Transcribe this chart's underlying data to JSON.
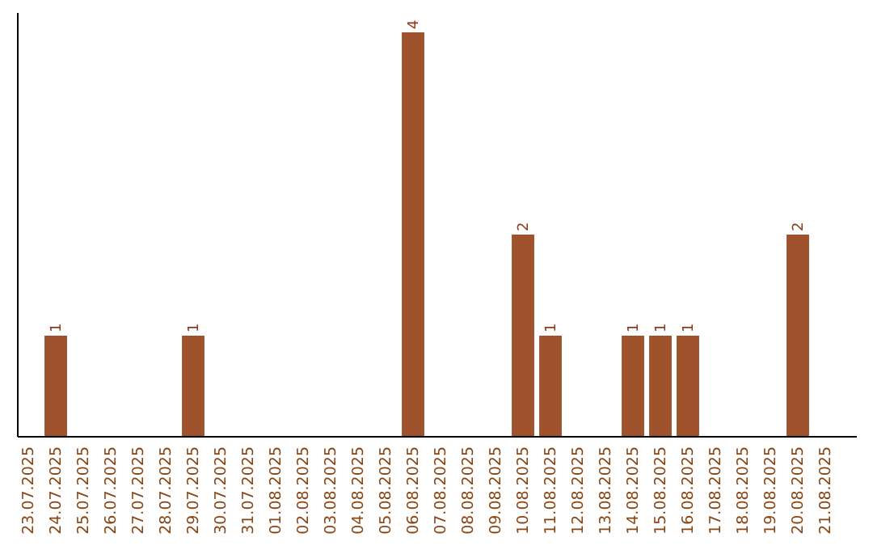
{
  "chart_data": {
    "type": "bar",
    "categories": [
      "23.07.2025",
      "24.07.2025",
      "25.07.2025",
      "26.07.2025",
      "27.07.2025",
      "28.07.2025",
      "29.07.2025",
      "30.07.2025",
      "31.07.2025",
      "01.08.2025",
      "02.08.2025",
      "03.08.2025",
      "04.08.2025",
      "05.08.2025",
      "06.08.2025",
      "07.08.2025",
      "08.08.2025",
      "09.08.2025",
      "10.08.2025",
      "11.08.2025",
      "12.08.2025",
      "13.08.2025",
      "14.08.2025",
      "15.08.2025",
      "16.08.2025",
      "17.08.2025",
      "18.08.2025",
      "19.08.2025",
      "20.08.2025",
      "21.08.2025"
    ],
    "values": [
      0,
      1,
      0,
      0,
      0,
      0,
      1,
      0,
      0,
      0,
      0,
      0,
      0,
      0,
      4,
      0,
      0,
      0,
      2,
      1,
      0,
      0,
      1,
      1,
      1,
      0,
      0,
      0,
      2,
      0
    ],
    "color": "#a0522d",
    "value_labels": [
      null,
      "1",
      null,
      null,
      null,
      null,
      "1",
      null,
      null,
      null,
      null,
      null,
      null,
      null,
      "4",
      null,
      null,
      null,
      "2",
      "1",
      null,
      null,
      "1",
      "1",
      "1",
      null,
      null,
      null,
      "2",
      null
    ]
  }
}
